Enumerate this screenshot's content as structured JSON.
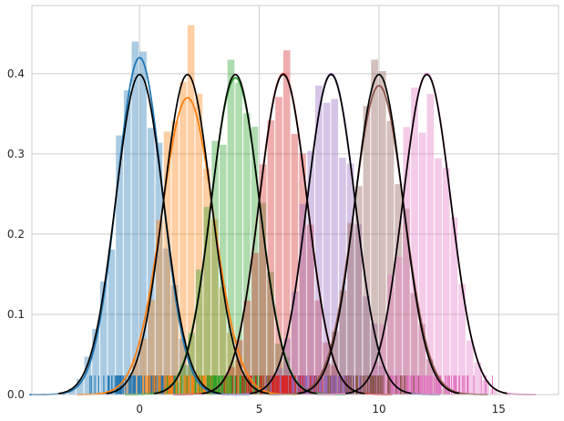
{
  "chart_data": {
    "type": "histogram",
    "title": "",
    "xlabel": "",
    "ylabel": "",
    "xlim": [
      -4.5,
      17.5
    ],
    "ylim": [
      0,
      0.485
    ],
    "x_ticks": [
      0,
      5,
      10,
      15
    ],
    "y_ticks": [
      0.0,
      0.1,
      0.2,
      0.3,
      0.4
    ],
    "x_tick_labels": [
      "0",
      "5",
      "10",
      "15"
    ],
    "y_tick_labels": [
      "0.0",
      "0.1",
      "0.2",
      "0.3",
      "0.4"
    ],
    "grid": true,
    "legend": "none",
    "normal_pdf_sigma": 1.0,
    "normal_pdf_color": "#000000",
    "bin_width": 0.33,
    "series": [
      {
        "color": "#1f77b4",
        "mean": 0,
        "kde_peak": 0.42,
        "rug_range": [
          -2.8,
          3.0
        ]
      },
      {
        "color": "#ff7f0e",
        "mean": 2,
        "kde_peak": 0.37,
        "rug_range": [
          -0.8,
          5.0
        ]
      },
      {
        "color": "#2ca02c",
        "mean": 4,
        "kde_peak": 0.395,
        "rug_range": [
          1.0,
          7.0
        ]
      },
      {
        "color": "#d62728",
        "mean": 6,
        "kde_peak": 0.4,
        "rug_range": [
          3.0,
          9.0
        ]
      },
      {
        "color": "#9467bd",
        "mean": 8,
        "kde_peak": 0.4,
        "rug_range": [
          5.0,
          11.2
        ]
      },
      {
        "color": "#8c564b",
        "mean": 10,
        "kde_peak": 0.385,
        "rug_range": [
          7.0,
          13.0
        ]
      },
      {
        "color": "#e377c2",
        "mean": 12,
        "kde_peak": 0.4,
        "rug_range": [
          9.0,
          15.5
        ]
      }
    ]
  }
}
